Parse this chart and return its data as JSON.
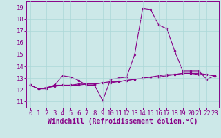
{
  "xlabel": "Windchill (Refroidissement éolien,°C)",
  "background_color": "#cce8e8",
  "line_color": "#880088",
  "xlim": [
    -0.5,
    23.5
  ],
  "ylim": [
    10.5,
    19.5
  ],
  "yticks": [
    11,
    12,
    13,
    14,
    15,
    16,
    17,
    18,
    19
  ],
  "xticks": [
    0,
    1,
    2,
    3,
    4,
    5,
    6,
    7,
    8,
    9,
    10,
    11,
    12,
    13,
    14,
    15,
    16,
    17,
    18,
    19,
    20,
    21,
    22,
    23
  ],
  "series1_x": [
    0,
    1,
    2,
    3,
    4,
    5,
    6,
    7,
    8,
    9,
    10,
    11,
    12,
    13,
    14,
    15,
    16,
    17,
    18,
    19,
    20,
    21,
    22,
    23
  ],
  "series1_y": [
    12.4,
    12.1,
    12.1,
    12.4,
    13.2,
    13.1,
    12.8,
    12.4,
    12.4,
    11.1,
    12.9,
    13.0,
    13.1,
    15.0,
    18.9,
    18.8,
    17.5,
    17.2,
    15.3,
    13.6,
    13.6,
    13.6,
    12.9,
    13.2
  ],
  "series2_x": [
    0,
    1,
    2,
    3,
    4,
    5,
    6,
    7,
    8,
    9,
    10,
    11,
    12,
    13,
    14,
    15,
    16,
    17,
    18,
    19,
    20,
    21,
    22,
    23
  ],
  "series2_y": [
    12.4,
    12.1,
    12.2,
    12.4,
    12.4,
    12.4,
    12.5,
    12.5,
    12.5,
    12.6,
    12.7,
    12.7,
    12.8,
    12.9,
    13.0,
    13.1,
    13.2,
    13.3,
    13.3,
    13.4,
    13.4,
    13.4,
    13.3,
    13.2
  ],
  "series3_x": [
    0,
    1,
    2,
    3,
    4,
    5,
    6,
    7,
    8,
    9,
    10,
    11,
    12,
    13,
    14,
    15,
    16,
    17,
    18,
    19,
    20,
    21,
    22,
    23
  ],
  "series3_y": [
    12.4,
    12.1,
    12.2,
    12.3,
    12.4,
    12.4,
    12.4,
    12.5,
    12.5,
    12.6,
    12.6,
    12.7,
    12.8,
    12.9,
    13.0,
    13.1,
    13.1,
    13.2,
    13.3,
    13.4,
    13.4,
    13.3,
    13.3,
    13.2
  ],
  "grid_color": "#aad8d8",
  "tick_fontsize": 6.5,
  "xlabel_fontsize": 7.0,
  "marker_size": 2.0,
  "linewidth": 0.8
}
